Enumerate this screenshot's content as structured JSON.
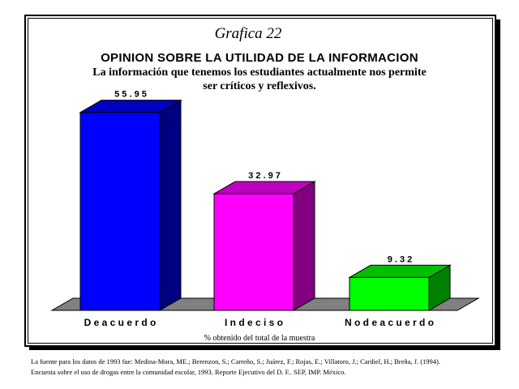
{
  "graph_label": "Grafica 22",
  "footnote": "% obtenido del total de la muestra",
  "source": {
    "line1": "La fuente para los datos de 1993 fue: Medina-Mora, ME.; Berenzon, S.; Carreño, S.; Juárez, F.; Rojas, E.; Villatoro, J.; Cardiel, H.; Breña, J. (1994).",
    "line2": "Encuesta sobre el uso de drogas entre la comunidad escolar, 1993. Reporte Ejecutivo del D. F.. SEP, IMP. México."
  },
  "chart_data": {
    "type": "bar",
    "title": "OPINION SOBRE LA UTILIDAD DE LA INFORMACION",
    "subtitle_line1": "La información que tenemos los estudiantes actualmente nos permite",
    "subtitle_line2": "ser críticos y reflexivos.",
    "categories": [
      "De acuerdo",
      "Indeciso",
      "No de acuerdo"
    ],
    "category_labels": [
      "D e  a c u e r d o",
      "I n d e c i s o",
      "N o  d e  a c u e r d o"
    ],
    "values": [
      55.95,
      32.97,
      9.32
    ],
    "value_labels": [
      "5 5 . 9 5",
      "3 2 . 9 7",
      "9 . 3 2"
    ],
    "colors": [
      "#0000ff",
      "#ff00ff",
      "#00ff00"
    ],
    "side_colors": [
      "#000080",
      "#800080",
      "#008000"
    ],
    "top_colors": [
      "#0000c0",
      "#c000c0",
      "#00c000"
    ],
    "ylim": [
      0,
      60
    ],
    "grid": false,
    "legend": "none",
    "three_d": true
  }
}
